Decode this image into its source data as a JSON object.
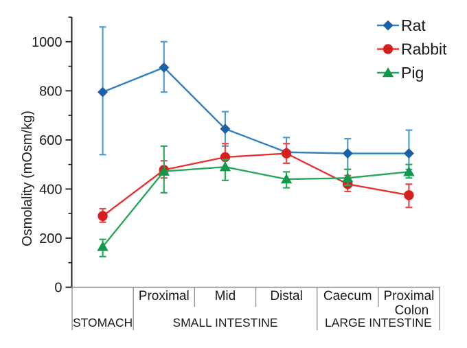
{
  "figure": {
    "background": "#ffffff",
    "text_color": "#1a1a1a",
    "table_line_color": "#909090"
  },
  "chart_data": {
    "type": "line",
    "title": "",
    "ylabel": "Osmolality (mOsm/kg)",
    "ylim": [
      0,
      1100
    ],
    "yticks_major": [
      0,
      200,
      400,
      600,
      800,
      1000
    ],
    "yticks_minor": [
      100,
      300,
      500,
      700,
      900,
      1100
    ],
    "grid": false,
    "legend_position": "top-right",
    "categories": [
      "Stomach",
      "Small intestine proximal",
      "Small intestine mid",
      "Small intestine distal",
      "Caecum",
      "Proximal colon"
    ],
    "x_axis": {
      "segment_labels": [
        [],
        [
          "Proximal"
        ],
        [
          "Mid"
        ],
        [
          "Distal"
        ],
        [
          "Caecum"
        ],
        [
          "Proximal",
          "Colon"
        ]
      ],
      "region_labels": [
        {
          "label": "STOMACH",
          "start": 0,
          "end": 1
        },
        {
          "label": "SMALL INTESTINE",
          "start": 1,
          "end": 4
        },
        {
          "label": "LARGE INTESTINE",
          "start": 4,
          "end": 6
        }
      ]
    },
    "series": [
      {
        "name": "Rat",
        "marker": "diamond",
        "marker_color": "#1a5fa8",
        "line_color": "#2e81be",
        "error_color": "#4f9cce",
        "values": [
          795,
          895,
          645,
          550,
          545,
          545
        ],
        "err_low": [
          540,
          795,
          575,
          505,
          480,
          480
        ],
        "err_high": [
          1060,
          1000,
          715,
          610,
          605,
          640
        ]
      },
      {
        "name": "Rabbit",
        "marker": "circle",
        "marker_color": "#d62020",
        "line_color": "#e23434",
        "error_color": "#e24a4a",
        "values": [
          290,
          478,
          530,
          545,
          420,
          375
        ],
        "err_low": [
          265,
          445,
          480,
          505,
          390,
          325
        ],
        "err_high": [
          320,
          515,
          585,
          585,
          455,
          420
        ]
      },
      {
        "name": "Pig",
        "marker": "triangle",
        "marker_color": "#12984a",
        "line_color": "#28a75b",
        "error_color": "#2aa85c",
        "values": [
          165,
          472,
          490,
          440,
          445,
          470
        ],
        "err_low": [
          125,
          385,
          435,
          405,
          415,
          445
        ],
        "err_high": [
          195,
          575,
          520,
          470,
          480,
          500
        ]
      }
    ]
  }
}
